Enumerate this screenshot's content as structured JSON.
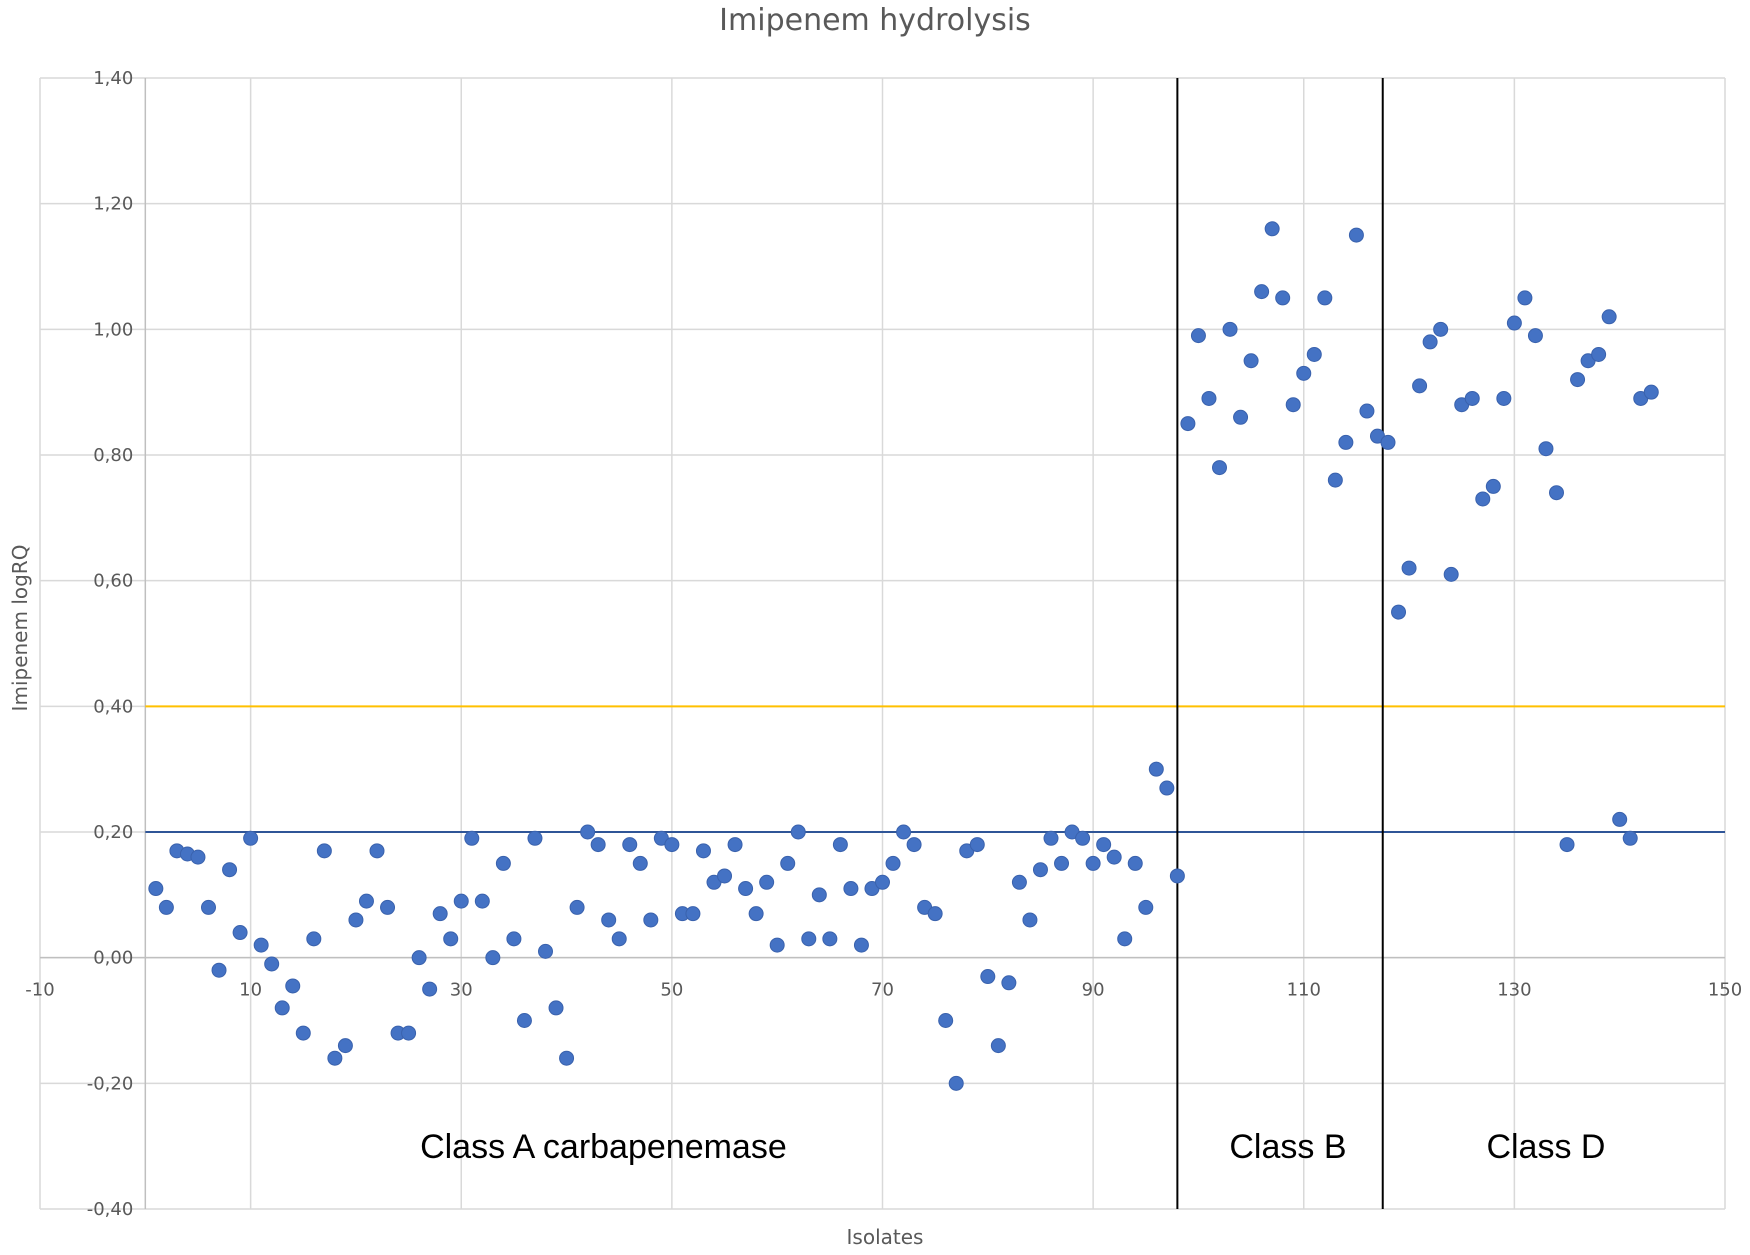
{
  "chart_data": {
    "type": "scatter",
    "title": "Imipenem hydrolysis",
    "xlabel": "Isolates",
    "ylabel": "Imipenem logRQ",
    "xlim": [
      -10,
      150
    ],
    "ylim": [
      -0.4,
      1.4
    ],
    "x_ticks": [
      -10,
      10,
      30,
      50,
      70,
      90,
      110,
      130,
      150
    ],
    "y_ticks": [
      -0.4,
      -0.2,
      0,
      0.2,
      0.4,
      0.6,
      0.8,
      1.0,
      1.2,
      1.4
    ],
    "y_tick_labels": [
      "-0,40",
      "-0,20",
      "0,00",
      "0,20",
      "0,40",
      "0,60",
      "0,80",
      "1,00",
      "1,20",
      "1,40"
    ],
    "grid": true,
    "reference_lines": [
      {
        "y": 0.4,
        "color": "#ffc000"
      },
      {
        "y": 0.2,
        "color": "#2f5597"
      }
    ],
    "class_dividers_x": [
      98,
      117.5
    ],
    "regions": [
      {
        "label": "Class A carbapenemase",
        "x": 43.5
      },
      {
        "label": "Class B",
        "x": 108.5
      },
      {
        "label": "Class D",
        "x": 133
      }
    ],
    "point_color": "#4472c4",
    "series": [
      {
        "points": [
          [
            1,
            0.11
          ],
          [
            2,
            0.08
          ],
          [
            3,
            0.17
          ],
          [
            4,
            0.165
          ],
          [
            5,
            0.16
          ],
          [
            6,
            0.08
          ],
          [
            7,
            -0.02
          ],
          [
            8,
            0.14
          ],
          [
            9,
            0.04
          ],
          [
            10,
            0.19
          ],
          [
            11,
            0.02
          ],
          [
            12,
            -0.01
          ],
          [
            13,
            -0.08
          ],
          [
            14,
            -0.045
          ],
          [
            15,
            -0.12
          ],
          [
            16,
            0.03
          ],
          [
            17,
            0.17
          ],
          [
            18,
            -0.16
          ],
          [
            19,
            -0.14
          ],
          [
            20,
            0.06
          ],
          [
            21,
            0.09
          ],
          [
            22,
            0.17
          ],
          [
            23,
            0.08
          ],
          [
            24,
            -0.12
          ],
          [
            25,
            -0.12
          ],
          [
            26,
            0.0
          ],
          [
            27,
            -0.05
          ],
          [
            28,
            0.07
          ],
          [
            29,
            0.03
          ],
          [
            30,
            0.09
          ],
          [
            31,
            0.19
          ],
          [
            32,
            0.09
          ],
          [
            33,
            0.0
          ],
          [
            34,
            0.15
          ],
          [
            35,
            0.03
          ],
          [
            36,
            -0.1
          ],
          [
            37,
            0.19
          ],
          [
            38,
            0.01
          ],
          [
            39,
            -0.08
          ],
          [
            40,
            -0.16
          ],
          [
            41,
            0.08
          ],
          [
            42,
            0.2
          ],
          [
            43,
            0.18
          ],
          [
            44,
            0.06
          ],
          [
            45,
            0.03
          ],
          [
            46,
            0.18
          ],
          [
            47,
            0.15
          ],
          [
            48,
            0.06
          ],
          [
            49,
            0.19
          ],
          [
            50,
            0.18
          ],
          [
            51,
            0.07
          ],
          [
            52,
            0.07
          ],
          [
            53,
            0.17
          ],
          [
            54,
            0.12
          ],
          [
            55,
            0.13
          ],
          [
            56,
            0.18
          ],
          [
            57,
            0.11
          ],
          [
            58,
            0.07
          ],
          [
            59,
            0.12
          ],
          [
            60,
            0.02
          ],
          [
            61,
            0.15
          ],
          [
            62,
            0.2
          ],
          [
            63,
            0.03
          ],
          [
            64,
            0.1
          ],
          [
            65,
            0.03
          ],
          [
            66,
            0.18
          ],
          [
            67,
            0.11
          ],
          [
            68,
            0.02
          ],
          [
            69,
            0.11
          ],
          [
            70,
            0.12
          ],
          [
            71,
            0.15
          ],
          [
            72,
            0.2
          ],
          [
            73,
            0.18
          ],
          [
            74,
            0.08
          ],
          [
            75,
            0.07
          ],
          [
            76,
            -0.1
          ],
          [
            77,
            -0.2
          ],
          [
            78,
            0.17
          ],
          [
            79,
            0.18
          ],
          [
            80,
            -0.03
          ],
          [
            81,
            -0.14
          ],
          [
            82,
            -0.04
          ],
          [
            83,
            0.12
          ],
          [
            84,
            0.06
          ],
          [
            85,
            0.14
          ],
          [
            86,
            0.19
          ],
          [
            87,
            0.15
          ],
          [
            88,
            0.2
          ],
          [
            89,
            0.19
          ],
          [
            90,
            0.15
          ],
          [
            91,
            0.18
          ],
          [
            92,
            0.16
          ],
          [
            93,
            0.03
          ],
          [
            94,
            0.15
          ],
          [
            95,
            0.08
          ],
          [
            96,
            0.3
          ],
          [
            97,
            0.27
          ],
          [
            98,
            0.13
          ],
          [
            99,
            0.85
          ],
          [
            100,
            0.99
          ],
          [
            101,
            0.89
          ],
          [
            102,
            0.78
          ],
          [
            103,
            1.0
          ],
          [
            104,
            0.86
          ],
          [
            105,
            0.95
          ],
          [
            106,
            1.06
          ],
          [
            107,
            1.16
          ],
          [
            108,
            1.05
          ],
          [
            109,
            0.88
          ],
          [
            110,
            0.93
          ],
          [
            111,
            0.96
          ],
          [
            112,
            1.05
          ],
          [
            113,
            0.76
          ],
          [
            114,
            0.82
          ],
          [
            115,
            1.15
          ],
          [
            116,
            0.87
          ],
          [
            117,
            0.83
          ],
          [
            118,
            0.82
          ],
          [
            119,
            0.55
          ],
          [
            120,
            0.62
          ],
          [
            121,
            0.91
          ],
          [
            122,
            0.98
          ],
          [
            123,
            1.0
          ],
          [
            124,
            0.61
          ],
          [
            125,
            0.88
          ],
          [
            126,
            0.89
          ],
          [
            127,
            0.73
          ],
          [
            128,
            0.75
          ],
          [
            129,
            0.89
          ],
          [
            130,
            1.01
          ],
          [
            131,
            1.05
          ],
          [
            132,
            0.99
          ],
          [
            133,
            0.81
          ],
          [
            134,
            0.74
          ],
          [
            135,
            0.18
          ],
          [
            136,
            0.92
          ],
          [
            137,
            0.95
          ],
          [
            138,
            0.96
          ],
          [
            139,
            1.02
          ],
          [
            140,
            0.22
          ],
          [
            141,
            0.19
          ],
          [
            142,
            0.89
          ],
          [
            143,
            0.9
          ]
        ]
      }
    ]
  }
}
